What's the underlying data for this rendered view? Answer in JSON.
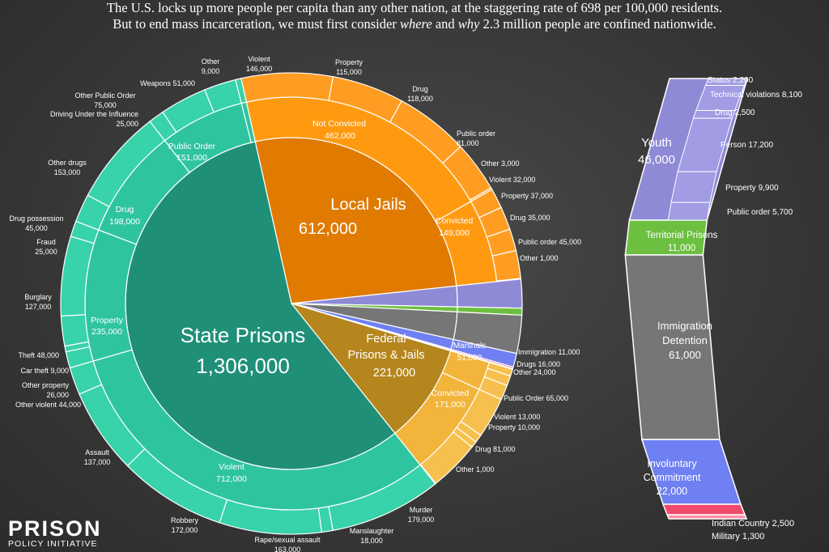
{
  "intro": {
    "line1": "The U.S. locks up more people per capita than any other nation, at the staggering rate of 698 per 100,000 residents.",
    "line2_a": "But to end mass incarceration, we must first consider ",
    "line2_where": "where",
    "line2_b": " and ",
    "line2_why": "why",
    "line2_c": " 2.3 million people are confined nationwide."
  },
  "logo": {
    "line1": "PRISON",
    "line2": "POLICY INITIATIVE"
  },
  "colors": {
    "state": "#1f8f78",
    "state_ring": "#2fc4a0",
    "jails": "#e07a00",
    "jails_ring": "#ff9a10",
    "federal": "#b5861d",
    "federal_ring": "#f2b43a",
    "youth": "#8f8ad6",
    "territorial": "#6cbf3f",
    "immigration": "#767676",
    "civil": "#6f80f2",
    "indian": "#f04a6a",
    "military": "#ff8fa6"
  },
  "chart_data": {
    "type": "pie",
    "title": "",
    "center_labels": {
      "state": {
        "line1": "State Prisons",
        "line2": "1,306,000"
      },
      "jails": {
        "line1": "Local Jails",
        "line2": "612,000"
      },
      "federal": {
        "line1": "Federal",
        "line2": "Prisons & Jails",
        "line3": "221,000"
      }
    },
    "pie": [
      {
        "name": "Local Jails",
        "value": 612000,
        "groups": [
          {
            "name": "Not Convicted",
            "value": 462000,
            "items": [
              {
                "name": "Violent",
                "value": 146000
              },
              {
                "name": "Property",
                "value": 115000
              },
              {
                "name": "Drug",
                "value": 118000
              },
              {
                "name": "Public order",
                "value": 81000
              },
              {
                "name": "Other",
                "value": 3000
              }
            ]
          },
          {
            "name": "Convicted",
            "value": 149000,
            "items": [
              {
                "name": "Violent",
                "value": 32000
              },
              {
                "name": "Property",
                "value": 37000
              },
              {
                "name": "Drug",
                "value": 35000
              },
              {
                "name": "Public order",
                "value": 45000
              },
              {
                "name": "Other",
                "value": 1000
              }
            ]
          }
        ]
      },
      {
        "name": "Youth",
        "value": 46000
      },
      {
        "name": "Territorial Prisons",
        "value": 11000
      },
      {
        "name": "Immigration Detention",
        "value": 61000
      },
      {
        "name": "Involuntary Commitment",
        "value": 22000
      },
      {
        "name": "Indian Country",
        "value": 2500
      },
      {
        "name": "Military",
        "value": 1300
      },
      {
        "name": "Federal Prisons & Jails",
        "value": 221000,
        "groups": [
          {
            "name": "Marshals",
            "value": 51000,
            "items": [
              {
                "name": "Immigration",
                "value": 11000
              },
              {
                "name": "Drugs",
                "value": 16000
              },
              {
                "name": "Other",
                "value": 24000
              }
            ]
          },
          {
            "name": "Convicted",
            "value": 171000,
            "items": [
              {
                "name": "Public Order",
                "value": 65000
              },
              {
                "name": "Violent",
                "value": 13000
              },
              {
                "name": "Property",
                "value": 10000
              },
              {
                "name": "Drug",
                "value": 81000
              },
              {
                "name": "Other",
                "value": 1000
              }
            ]
          }
        ]
      },
      {
        "name": "State Prisons",
        "value": 1306000,
        "groups": [
          {
            "name": "Violent",
            "value": 712000,
            "items": [
              {
                "name": "Murder",
                "value": 179000
              },
              {
                "name": "Manslaughter",
                "value": 18000
              },
              {
                "name": "Rape/sexual assault",
                "value": 163000
              },
              {
                "name": "Robbery",
                "value": 172000
              },
              {
                "name": "Assault",
                "value": 137000
              },
              {
                "name": "Other violent",
                "value": 44000
              }
            ]
          },
          {
            "name": "Property",
            "value": 235000,
            "items": [
              {
                "name": "Other property",
                "value": 26000
              },
              {
                "name": "Car theft",
                "value": 9000
              },
              {
                "name": "Theft",
                "value": 48000
              },
              {
                "name": "Burglary",
                "value": 127000
              },
              {
                "name": "Fraud",
                "value": 25000
              }
            ]
          },
          {
            "name": "Drug",
            "value": 198000,
            "items": [
              {
                "name": "Drug possession",
                "value": 45000
              },
              {
                "name": "Other drugs",
                "value": 153000
              }
            ]
          },
          {
            "name": "Public Order",
            "value": 151000,
            "items": [
              {
                "name": "Driving Under the Influence",
                "value": 25000
              },
              {
                "name": "Other Public Order",
                "value": 75000
              },
              {
                "name": "Weapons",
                "value": 51000
              }
            ]
          },
          {
            "name": "Other",
            "value": 9000
          }
        ]
      }
    ],
    "wedge_labels": {
      "jails_outer": [
        {
          "name": "Violent",
          "value": "146,000"
        },
        {
          "name": "Property",
          "value": "115,000"
        },
        {
          "name": "Drug",
          "value": "118,000"
        },
        {
          "name": "Public order",
          "value": "81,000"
        },
        {
          "text": "Other 3,000"
        },
        {
          "text": "Violent 32,000"
        },
        {
          "text": "Property 37,000"
        },
        {
          "text": "Drug 35,000"
        },
        {
          "text": "Public order 45,000"
        },
        {
          "text": "Other 1,000"
        }
      ],
      "federal_outer": [
        {
          "text": "Immigration 11,000"
        },
        {
          "text": "Drugs 16,000"
        },
        {
          "text": "Other 24,000"
        },
        {
          "text": "Public Order 65,000"
        },
        {
          "text": "Violent 13,000"
        },
        {
          "text": "Property 10,000"
        },
        {
          "text": "Drug 81,000"
        },
        {
          "text": "Other 1,000"
        }
      ],
      "state_outer": [
        {
          "name": "Murder",
          "value": "179,000"
        },
        {
          "name": "Manslaughter",
          "value": "18,000"
        },
        {
          "name": "Rape/sexual assault",
          "value": "163,000"
        },
        {
          "name": "Robbery",
          "value": "172,000"
        },
        {
          "name": "Assault",
          "value": "137,000"
        },
        {
          "name": "Other violent 44,000"
        },
        {
          "name": "Other property",
          "value": "26,000"
        },
        {
          "name": "Car theft 9,000"
        },
        {
          "name": "Theft 48,000"
        },
        {
          "name": "Burglary",
          "value": "127,000"
        },
        {
          "name": "Fraud",
          "value": "25,000"
        },
        {
          "name": "Drug possession",
          "value": "45,000"
        },
        {
          "name": "Other drugs",
          "value": "153,000"
        },
        {
          "name": "Driving Under the Influence",
          "value": "25,000"
        },
        {
          "name": "Other Public Order",
          "value": "75,000"
        },
        {
          "name": "Weapons  51,000"
        },
        {
          "name": "Other",
          "value": "9,000"
        }
      ],
      "groups": {
        "not_convicted": {
          "name": "Not Convicted",
          "value": "462,000"
        },
        "jail_convicted": {
          "name": "Convicted",
          "value": "149,000"
        },
        "marshals": {
          "name": "Marshals",
          "value": "51,000"
        },
        "fed_convicted": {
          "name": "Convicted",
          "value": "171,000"
        },
        "violent": {
          "name": "Violent",
          "value": "712,000"
        },
        "property": {
          "name": "Property",
          "value": "235,000"
        },
        "drug": {
          "name": "Drug",
          "value": "198,000"
        },
        "public_order": {
          "name": "Public Order",
          "value": "151,000"
        }
      }
    },
    "side_bar": {
      "youth": {
        "line1": "Youth",
        "line2": "46,000",
        "items": [
          {
            "text": "Status 2,200",
            "value": 2200
          },
          {
            "text": "Technical violations 8,100",
            "value": 8100
          },
          {
            "text": "Drug 2,500",
            "value": 2500
          },
          {
            "text": "Person 17,200",
            "value": 17200
          },
          {
            "text": "Property 9,900",
            "value": 9900
          },
          {
            "text": "Public order 5,700",
            "value": 5700
          }
        ]
      },
      "territorial": {
        "line1": "Territorial Prisons",
        "line2": "11,000"
      },
      "immigration": {
        "line1": "Immigration",
        "line2": "Detention",
        "line3": "61,000"
      },
      "civil": {
        "line1": "Involuntary",
        "line2": "Commitment",
        "line3": "22,000"
      },
      "indian": {
        "text": "Indian Country 2,500"
      },
      "military": {
        "text": "Military 1,300"
      }
    }
  }
}
